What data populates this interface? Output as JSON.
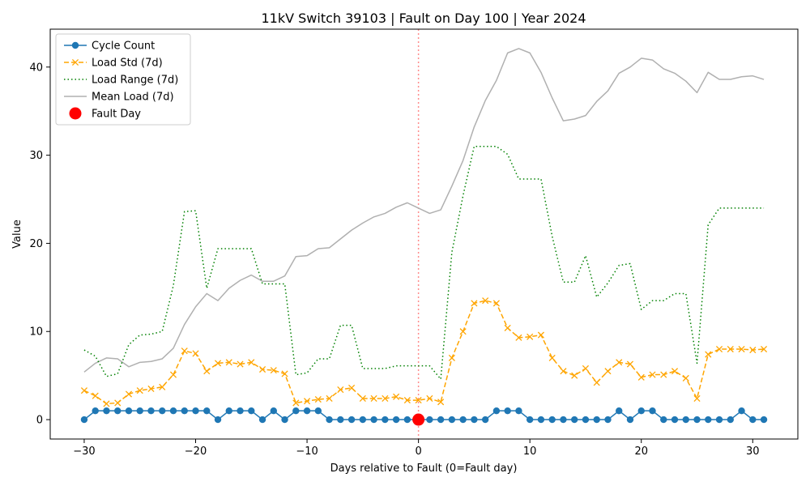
{
  "chart_data": {
    "type": "line",
    "title": "11kV Switch 39103 | Fault on Day 100 | Year 2024",
    "xlabel": "Days relative to Fault (0=Fault day)",
    "ylabel": "Value",
    "xlim": [
      -33.05,
      34.05
    ],
    "ylim": [
      -2.2,
      44.3
    ],
    "xticks": [
      -30,
      -20,
      -10,
      0,
      10,
      20,
      30
    ],
    "yticks": [
      0,
      10,
      20,
      30,
      40
    ],
    "grid": false,
    "legend_position": "top-left",
    "fault_line_x": 0,
    "x": [
      -30,
      -29,
      -28,
      -27,
      -26,
      -25,
      -24,
      -23,
      -22,
      -21,
      -20,
      -19,
      -18,
      -17,
      -16,
      -15,
      -14,
      -13,
      -12,
      -11,
      -10,
      -9,
      -8,
      -7,
      -6,
      -5,
      -4,
      -3,
      -2,
      -1,
      0,
      1,
      2,
      3,
      4,
      5,
      6,
      7,
      8,
      9,
      10,
      11,
      12,
      13,
      14,
      15,
      16,
      17,
      18,
      19,
      20,
      21,
      22,
      23,
      24,
      25,
      26,
      27,
      28,
      29,
      30,
      31
    ],
    "series": [
      {
        "name": "Cycle Count",
        "color": "#1f77b4",
        "style": "solid-marker-circle",
        "values": [
          0,
          1,
          1,
          1,
          1,
          1,
          1,
          1,
          1,
          1,
          1,
          1,
          0,
          1,
          1,
          1,
          0,
          1,
          0,
          1,
          1,
          1,
          0,
          0,
          0,
          0,
          0,
          0,
          0,
          0,
          0,
          0,
          0,
          0,
          0,
          0,
          0,
          1,
          1,
          1,
          0,
          0,
          0,
          0,
          0,
          0,
          0,
          0,
          1,
          0,
          1,
          1,
          0,
          0,
          0,
          0,
          0,
          0,
          0,
          1,
          0,
          0
        ]
      },
      {
        "name": "Load Std (7d)",
        "color": "#ffa500",
        "style": "dashed-marker-x",
        "values": [
          3.3,
          2.7,
          1.8,
          1.9,
          2.9,
          3.3,
          3.5,
          3.7,
          5.1,
          7.8,
          7.5,
          5.5,
          6.4,
          6.5,
          6.3,
          6.5,
          5.7,
          5.6,
          5.2,
          1.9,
          2.1,
          2.3,
          2.4,
          3.4,
          3.6,
          2.4,
          2.4,
          2.4,
          2.6,
          2.2,
          2.2,
          2.4,
          2.0,
          7.0,
          10.0,
          13.2,
          13.5,
          13.2,
          10.4,
          9.3,
          9.4,
          9.6,
          7.0,
          5.5,
          5.0,
          5.8,
          4.2,
          5.5,
          6.5,
          6.3,
          4.8,
          5.1,
          5.1,
          5.5,
          4.7,
          2.4,
          7.4,
          8.0,
          8.0,
          8.0,
          7.9,
          8.0
        ]
      },
      {
        "name": "Load Range (7d)",
        "color": "#008000",
        "style": "dotted",
        "values": [
          7.9,
          7.2,
          4.9,
          5.2,
          8.5,
          9.6,
          9.7,
          10.0,
          15.2,
          23.6,
          23.7,
          14.9,
          19.4,
          19.4,
          19.4,
          19.4,
          15.4,
          15.4,
          15.4,
          5.1,
          5.3,
          6.9,
          6.9,
          10.7,
          10.7,
          5.8,
          5.8,
          5.8,
          6.1,
          6.1,
          6.1,
          6.1,
          4.6,
          19.0,
          25.4,
          31.0,
          31.0,
          31.0,
          30.1,
          27.3,
          27.3,
          27.3,
          20.8,
          15.6,
          15.6,
          18.6,
          13.9,
          15.5,
          17.5,
          17.7,
          12.5,
          13.5,
          13.5,
          14.3,
          14.3,
          6.4,
          22.1,
          24.0,
          24.0,
          24.0,
          24.0,
          24.0
        ]
      },
      {
        "name": "Mean Load (7d)",
        "color": "#b0b0b0",
        "style": "solid",
        "values": [
          5.4,
          6.4,
          7.0,
          6.9,
          6.0,
          6.5,
          6.6,
          6.9,
          8.1,
          10.8,
          12.8,
          14.3,
          13.5,
          14.9,
          15.8,
          16.4,
          15.7,
          15.7,
          16.3,
          18.5,
          18.6,
          19.4,
          19.5,
          20.5,
          21.5,
          22.3,
          23.0,
          23.4,
          24.1,
          24.6,
          24.0,
          23.4,
          23.8,
          26.5,
          29.4,
          33.2,
          36.2,
          38.5,
          41.6,
          42.1,
          41.6,
          39.4,
          36.5,
          33.9,
          34.1,
          34.5,
          36.1,
          37.3,
          39.3,
          40.0,
          41.0,
          40.8,
          39.8,
          39.3,
          38.4,
          37.1,
          39.4,
          38.6,
          38.6,
          38.9,
          39.0,
          38.6
        ]
      }
    ],
    "fault_marker": {
      "name": "Fault Day",
      "color": "#ff0000",
      "x": 0,
      "y": 0
    }
  }
}
